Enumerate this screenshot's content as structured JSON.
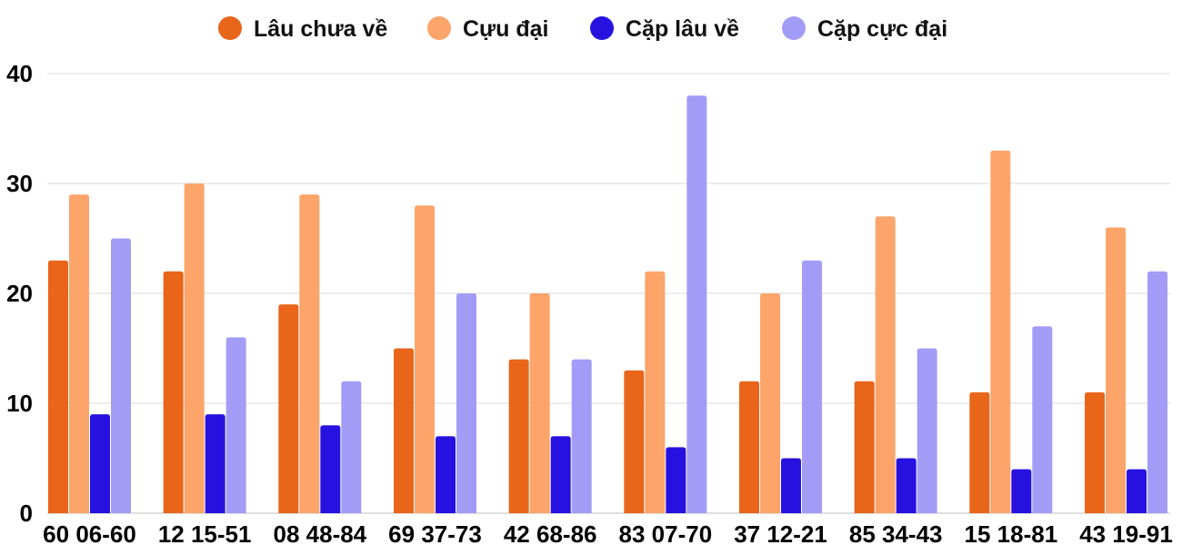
{
  "chart_data": {
    "type": "bar",
    "categories": [
      "60 06-60",
      "12 15-51",
      "08 48-84",
      "69 37-73",
      "42 68-86",
      "83 07-70",
      "37 12-21",
      "85 34-43",
      "15 18-81",
      "43 19-91"
    ],
    "series": [
      {
        "name": "Lâu chưa về",
        "color": "#e8651a",
        "values": [
          23,
          22,
          19,
          15,
          14,
          13,
          12,
          12,
          11,
          11
        ]
      },
      {
        "name": "Cựu đại",
        "color": "#fca46a",
        "values": [
          29,
          30,
          29,
          28,
          20,
          22,
          20,
          27,
          33,
          26
        ]
      },
      {
        "name": "Cặp lâu về",
        "color": "#2611e0",
        "values": [
          9,
          9,
          8,
          7,
          7,
          6,
          5,
          5,
          4,
          4
        ]
      },
      {
        "name": "Cặp cực đại",
        "color": "#a39cf7",
        "values": [
          25,
          16,
          12,
          20,
          14,
          38,
          23,
          15,
          17,
          22
        ]
      }
    ],
    "ylim": [
      0,
      40
    ],
    "yticks": [
      0,
      10,
      20,
      30,
      40
    ],
    "grid": true,
    "legend_position": "top"
  }
}
